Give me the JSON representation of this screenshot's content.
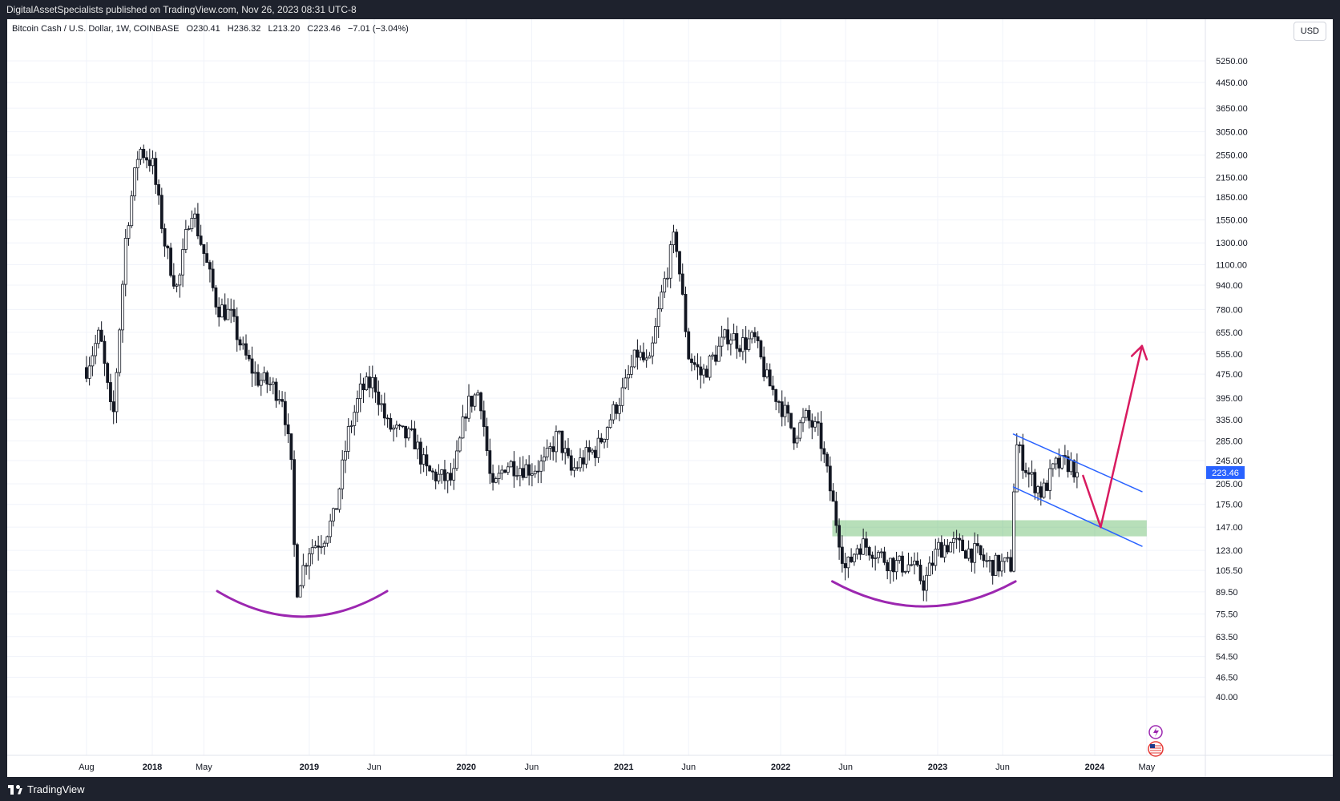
{
  "header": {
    "published_by": "DigitalAssetSpecialists published on TradingView.com, Nov 26, 2023 08:31 UTC-8"
  },
  "legend": {
    "symbol": "Bitcoin Cash / U.S. Dollar, 1W, COINBASE",
    "open": "O230.41",
    "high": "H236.32",
    "low": "L213.20",
    "close": "C223.46",
    "change": "−7.01 (−3.04%)"
  },
  "currency_button": "USD",
  "footer": {
    "brand": "TradingView"
  },
  "colors": {
    "candle": "#131722",
    "support_zone": "#4caf50",
    "channel": "#2962ff",
    "arrow": "#d81b60",
    "arc": "#9c27b0",
    "price_label": "#2962ff"
  },
  "chart_data": {
    "type": "candlestick",
    "scale": "log",
    "y_axis_ticks": [
      5250,
      4450,
      3650,
      3050,
      2550,
      2150,
      1850,
      1550,
      1300,
      1100,
      940,
      780,
      655,
      555,
      475,
      395,
      335,
      285,
      245,
      205,
      175,
      147,
      123,
      105.5,
      89.5,
      75.5,
      63.5,
      54.5,
      46.5,
      40
    ],
    "y_axis_labels": [
      "5250.00",
      "4450.00",
      "3650.00",
      "3050.00",
      "2550.00",
      "2150.00",
      "1850.00",
      "1550.00",
      "1300.00",
      "1100.00",
      "940.00",
      "780.00",
      "655.00",
      "555.00",
      "475.00",
      "395.00",
      "335.00",
      "285.00",
      "245.00",
      "205.00",
      "175.00",
      "147.00",
      "123.00",
      "105.50",
      "89.50",
      "75.50",
      "63.50",
      "54.50",
      "46.50",
      "40.00"
    ],
    "x_axis_labels": [
      {
        "label": "Aug",
        "bold": false
      },
      {
        "label": "2018",
        "bold": true
      },
      {
        "label": "May",
        "bold": false
      },
      {
        "label": "2019",
        "bold": true
      },
      {
        "label": "Jun",
        "bold": false
      },
      {
        "label": "2020",
        "bold": true
      },
      {
        "label": "Jun",
        "bold": false
      },
      {
        "label": "2021",
        "bold": true
      },
      {
        "label": "Jun",
        "bold": false
      },
      {
        "label": "2022",
        "bold": true
      },
      {
        "label": "Jun",
        "bold": false
      },
      {
        "label": "2023",
        "bold": true
      },
      {
        "label": "Jun",
        "bold": false
      },
      {
        "label": "2024",
        "bold": true
      },
      {
        "label": "May",
        "bold": false
      }
    ],
    "x_range": [
      "2017-07",
      "2024-07"
    ],
    "last_price": 223.46,
    "last_price_label": "223.46",
    "anchor_closes": [
      {
        "date": "2017-08",
        "close": 500
      },
      {
        "date": "2017-09",
        "close": 650
      },
      {
        "date": "2017-10",
        "close": 320
      },
      {
        "date": "2017-11",
        "close": 1400
      },
      {
        "date": "2017-12",
        "close": 2700
      },
      {
        "date": "2018-01",
        "close": 2400
      },
      {
        "date": "2018-02",
        "close": 1250
      },
      {
        "date": "2018-03",
        "close": 900
      },
      {
        "date": "2018-04",
        "close": 1750
      },
      {
        "date": "2018-05",
        "close": 1200
      },
      {
        "date": "2018-06",
        "close": 800
      },
      {
        "date": "2018-07",
        "close": 750
      },
      {
        "date": "2018-08",
        "close": 560
      },
      {
        "date": "2018-09",
        "close": 460
      },
      {
        "date": "2018-10",
        "close": 440
      },
      {
        "date": "2018-11",
        "close": 400
      },
      {
        "date": "2018-11-20",
        "close": 230
      },
      {
        "date": "2018-12",
        "close": 90
      },
      {
        "date": "2019-01",
        "close": 125
      },
      {
        "date": "2019-02",
        "close": 135
      },
      {
        "date": "2019-03",
        "close": 160
      },
      {
        "date": "2019-04",
        "close": 300
      },
      {
        "date": "2019-05",
        "close": 420
      },
      {
        "date": "2019-06",
        "close": 450
      },
      {
        "date": "2019-07",
        "close": 320
      },
      {
        "date": "2019-08",
        "close": 300
      },
      {
        "date": "2019-09",
        "close": 290
      },
      {
        "date": "2019-10",
        "close": 225
      },
      {
        "date": "2019-11",
        "close": 215
      },
      {
        "date": "2019-12",
        "close": 210
      },
      {
        "date": "2020-01",
        "close": 370
      },
      {
        "date": "2020-02",
        "close": 420
      },
      {
        "date": "2020-03",
        "close": 190
      },
      {
        "date": "2020-04",
        "close": 240
      },
      {
        "date": "2020-05",
        "close": 235
      },
      {
        "date": "2020-06",
        "close": 230
      },
      {
        "date": "2020-07",
        "close": 240
      },
      {
        "date": "2020-08",
        "close": 300
      },
      {
        "date": "2020-09",
        "close": 225
      },
      {
        "date": "2020-10",
        "close": 250
      },
      {
        "date": "2020-11",
        "close": 270
      },
      {
        "date": "2020-12",
        "close": 340
      },
      {
        "date": "2021-01",
        "close": 420
      },
      {
        "date": "2021-02",
        "close": 560
      },
      {
        "date": "2021-03",
        "close": 500
      },
      {
        "date": "2021-04",
        "close": 900
      },
      {
        "date": "2021-05",
        "close": 1400
      },
      {
        "date": "2021-06",
        "close": 550
      },
      {
        "date": "2021-07",
        "close": 470
      },
      {
        "date": "2021-08",
        "close": 550
      },
      {
        "date": "2021-09",
        "close": 650
      },
      {
        "date": "2021-10",
        "close": 600
      },
      {
        "date": "2021-11",
        "close": 620
      },
      {
        "date": "2021-12",
        "close": 450
      },
      {
        "date": "2022-01",
        "close": 380
      },
      {
        "date": "2022-02",
        "close": 300
      },
      {
        "date": "2022-03",
        "close": 340
      },
      {
        "date": "2022-04",
        "close": 300
      },
      {
        "date": "2022-05",
        "close": 180
      },
      {
        "date": "2022-06",
        "close": 105
      },
      {
        "date": "2022-07",
        "close": 130
      },
      {
        "date": "2022-08",
        "close": 125
      },
      {
        "date": "2022-09",
        "close": 115
      },
      {
        "date": "2022-10",
        "close": 110
      },
      {
        "date": "2022-11",
        "close": 110
      },
      {
        "date": "2022-12",
        "close": 95
      },
      {
        "date": "2023-01",
        "close": 125
      },
      {
        "date": "2023-02",
        "close": 130
      },
      {
        "date": "2023-03",
        "close": 125
      },
      {
        "date": "2023-04",
        "close": 120
      },
      {
        "date": "2023-05",
        "close": 110
      },
      {
        "date": "2023-06-20",
        "close": 110
      },
      {
        "date": "2023-07",
        "close": 280
      },
      {
        "date": "2023-08",
        "close": 220
      },
      {
        "date": "2023-09",
        "close": 190
      },
      {
        "date": "2023-10",
        "close": 235
      },
      {
        "date": "2023-11",
        "close": 240
      },
      {
        "date": "2023-11-26",
        "close": 223.46
      }
    ],
    "annotations": {
      "support_zone": {
        "from": "2022-05",
        "to": "2024-05",
        "price_top": 155,
        "price_bottom": 137
      },
      "channel_upper": [
        {
          "date": "2023-06-26",
          "price": 300
        },
        {
          "date": "2024-04-20",
          "price": 193
        }
      ],
      "channel_lower": [
        {
          "date": "2023-06-26",
          "price": 200
        },
        {
          "date": "2024-04-20",
          "price": 127
        }
      ],
      "arrow_down": [
        {
          "date": "2023-12-05",
          "price": 218
        },
        {
          "date": "2024-01-15",
          "price": 147
        }
      ],
      "arrow_up": [
        {
          "date": "2024-01-15",
          "price": 147
        },
        {
          "date": "2024-04-20",
          "price": 590
        }
      ],
      "arc_2018": {
        "from": "2018-06",
        "to": "2019-07",
        "price_edge": 90,
        "price_min": 74
      },
      "arc_2022": {
        "from": "2022-05",
        "to": "2023-07",
        "price_edge": 97,
        "price_min": 80
      }
    }
  }
}
